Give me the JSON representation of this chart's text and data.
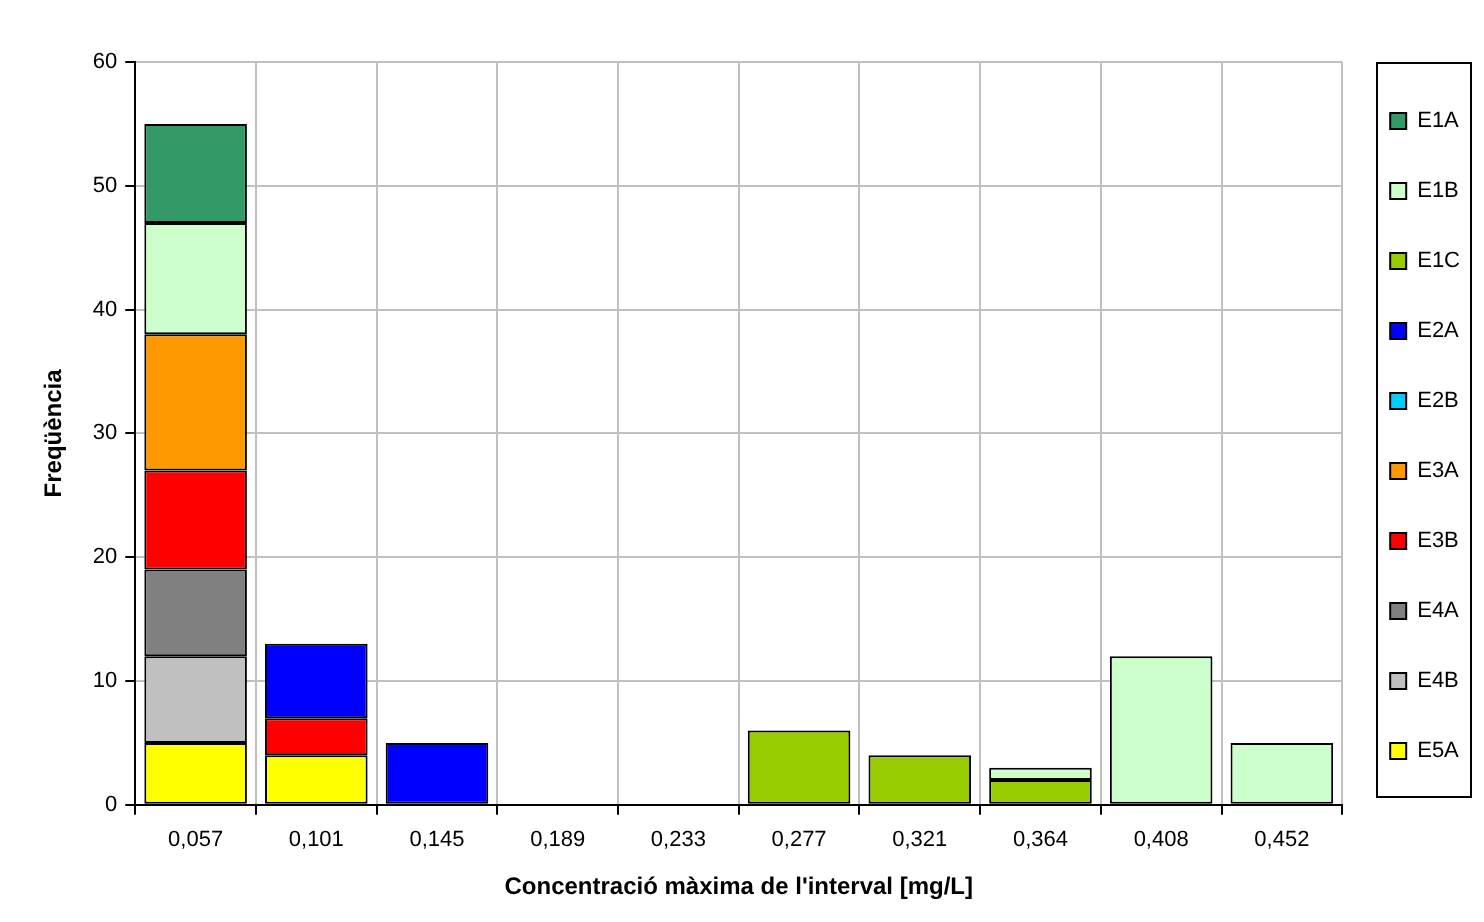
{
  "chart_data": {
    "type": "bar",
    "stacked": true,
    "xlabel": "Concentració màxima de l'interval [mg/L]",
    "ylabel": "Freqüència",
    "categories": [
      "0,057",
      "0,101",
      "0,145",
      "0,189",
      "0,233",
      "0,277",
      "0,321",
      "0,364",
      "0,408",
      "0,452"
    ],
    "series": [
      {
        "name": "E5A",
        "color": "#ffff00",
        "values": [
          5,
          4,
          0,
          0,
          0,
          0,
          0,
          0,
          0,
          0
        ]
      },
      {
        "name": "E4B",
        "color": "#c0c0c0",
        "values": [
          7,
          0,
          0,
          0,
          0,
          0,
          0,
          0,
          0,
          0
        ]
      },
      {
        "name": "E4A",
        "color": "#808080",
        "values": [
          7,
          0,
          0,
          0,
          0,
          0,
          0,
          0,
          0,
          0
        ]
      },
      {
        "name": "E3B",
        "color": "#ff0000",
        "values": [
          8,
          3,
          0,
          0,
          0,
          0,
          0,
          0,
          0,
          0
        ]
      },
      {
        "name": "E3A",
        "color": "#ff9900",
        "values": [
          11,
          0,
          0,
          0,
          0,
          0,
          0,
          0,
          0,
          0
        ]
      },
      {
        "name": "E2B",
        "color": "#00ccff",
        "values": [
          0,
          0,
          0,
          0,
          0,
          0,
          0,
          0,
          0,
          0
        ]
      },
      {
        "name": "E2A",
        "color": "#0000ff",
        "values": [
          0,
          6,
          5,
          0,
          0,
          0,
          0,
          0,
          0,
          0
        ]
      },
      {
        "name": "E1C",
        "color": "#99cc00",
        "values": [
          0,
          0,
          0,
          0,
          0,
          6,
          4,
          2,
          0,
          0
        ]
      },
      {
        "name": "E1B",
        "color": "#ccffcc",
        "values": [
          9,
          0,
          0,
          0,
          0,
          0,
          0,
          1,
          12,
          5
        ]
      },
      {
        "name": "E1A",
        "color": "#339966",
        "values": [
          8,
          0,
          0,
          0,
          0,
          0,
          0,
          0,
          0,
          0
        ]
      }
    ],
    "ylim": [
      0,
      60
    ],
    "yticks": [
      0,
      10,
      20,
      30,
      40,
      50,
      60
    ],
    "grid": true,
    "legend": "right"
  }
}
